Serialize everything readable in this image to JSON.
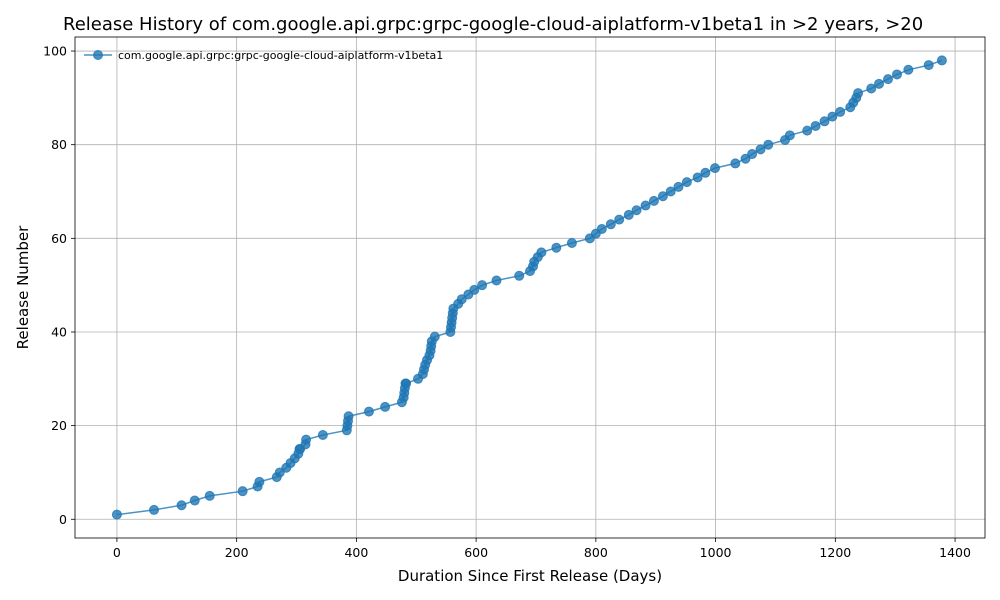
{
  "chart_data": {
    "type": "line",
    "title": "Release History of com.google.api.grpc:grpc-google-cloud-aiplatform-v1beta1 in >2 years, >20",
    "xlabel": "Duration Since First Release (Days)",
    "ylabel": "Release Number",
    "xlim": [
      -70,
      1450
    ],
    "ylim": [
      -4,
      103
    ],
    "xticks": [
      0,
      200,
      400,
      600,
      800,
      1000,
      1200,
      1400
    ],
    "yticks": [
      0,
      20,
      40,
      60,
      80,
      100
    ],
    "grid": true,
    "legend_position": "top-left",
    "color": "#1f77b4",
    "marker": "circle",
    "series": [
      {
        "name": "com.google.api.grpc:grpc-google-cloud-aiplatform-v1beta1",
        "x": [
          0,
          62,
          108,
          130,
          155,
          210,
          235,
          238,
          267,
          272,
          283,
          290,
          297,
          303,
          305,
          306,
          315,
          316,
          344,
          384,
          385,
          386,
          387,
          421,
          448,
          476,
          479,
          480,
          481,
          482,
          483,
          503,
          511,
          513,
          515,
          518,
          522,
          524,
          525,
          526,
          531,
          557,
          558,
          559,
          560,
          561,
          562,
          570,
          576,
          587,
          597,
          610,
          634,
          672,
          690,
          695,
          697,
          703,
          709,
          734,
          760,
          790,
          800,
          810,
          825,
          839,
          855,
          868,
          883,
          897,
          912,
          925,
          938,
          952,
          970,
          983,
          999,
          1033,
          1050,
          1061,
          1075,
          1088,
          1116,
          1124,
          1153,
          1167,
          1182,
          1195,
          1208,
          1225,
          1230,
          1235,
          1238,
          1260,
          1273,
          1288,
          1303,
          1322,
          1356,
          1378
        ],
        "y": [
          1,
          2,
          3,
          4,
          5,
          6,
          7,
          8,
          9,
          10,
          11,
          12,
          13,
          14,
          15,
          15,
          16,
          17,
          18,
          19,
          20,
          21,
          22,
          23,
          24,
          25,
          26,
          27,
          28,
          29,
          29,
          30,
          31,
          32,
          33,
          34,
          35,
          36,
          37,
          38,
          39,
          40,
          41,
          42,
          43,
          44,
          45,
          46,
          47,
          48,
          49,
          50,
          51,
          52,
          53,
          54,
          55,
          56,
          57,
          58,
          59,
          60,
          61,
          62,
          63,
          64,
          65,
          66,
          67,
          68,
          69,
          70,
          71,
          72,
          73,
          74,
          75,
          76,
          77,
          78,
          79,
          80,
          81,
          82,
          83,
          84,
          85,
          86,
          87,
          88,
          89,
          90,
          91,
          92,
          93,
          94,
          95,
          96,
          97,
          98
        ]
      }
    ]
  }
}
